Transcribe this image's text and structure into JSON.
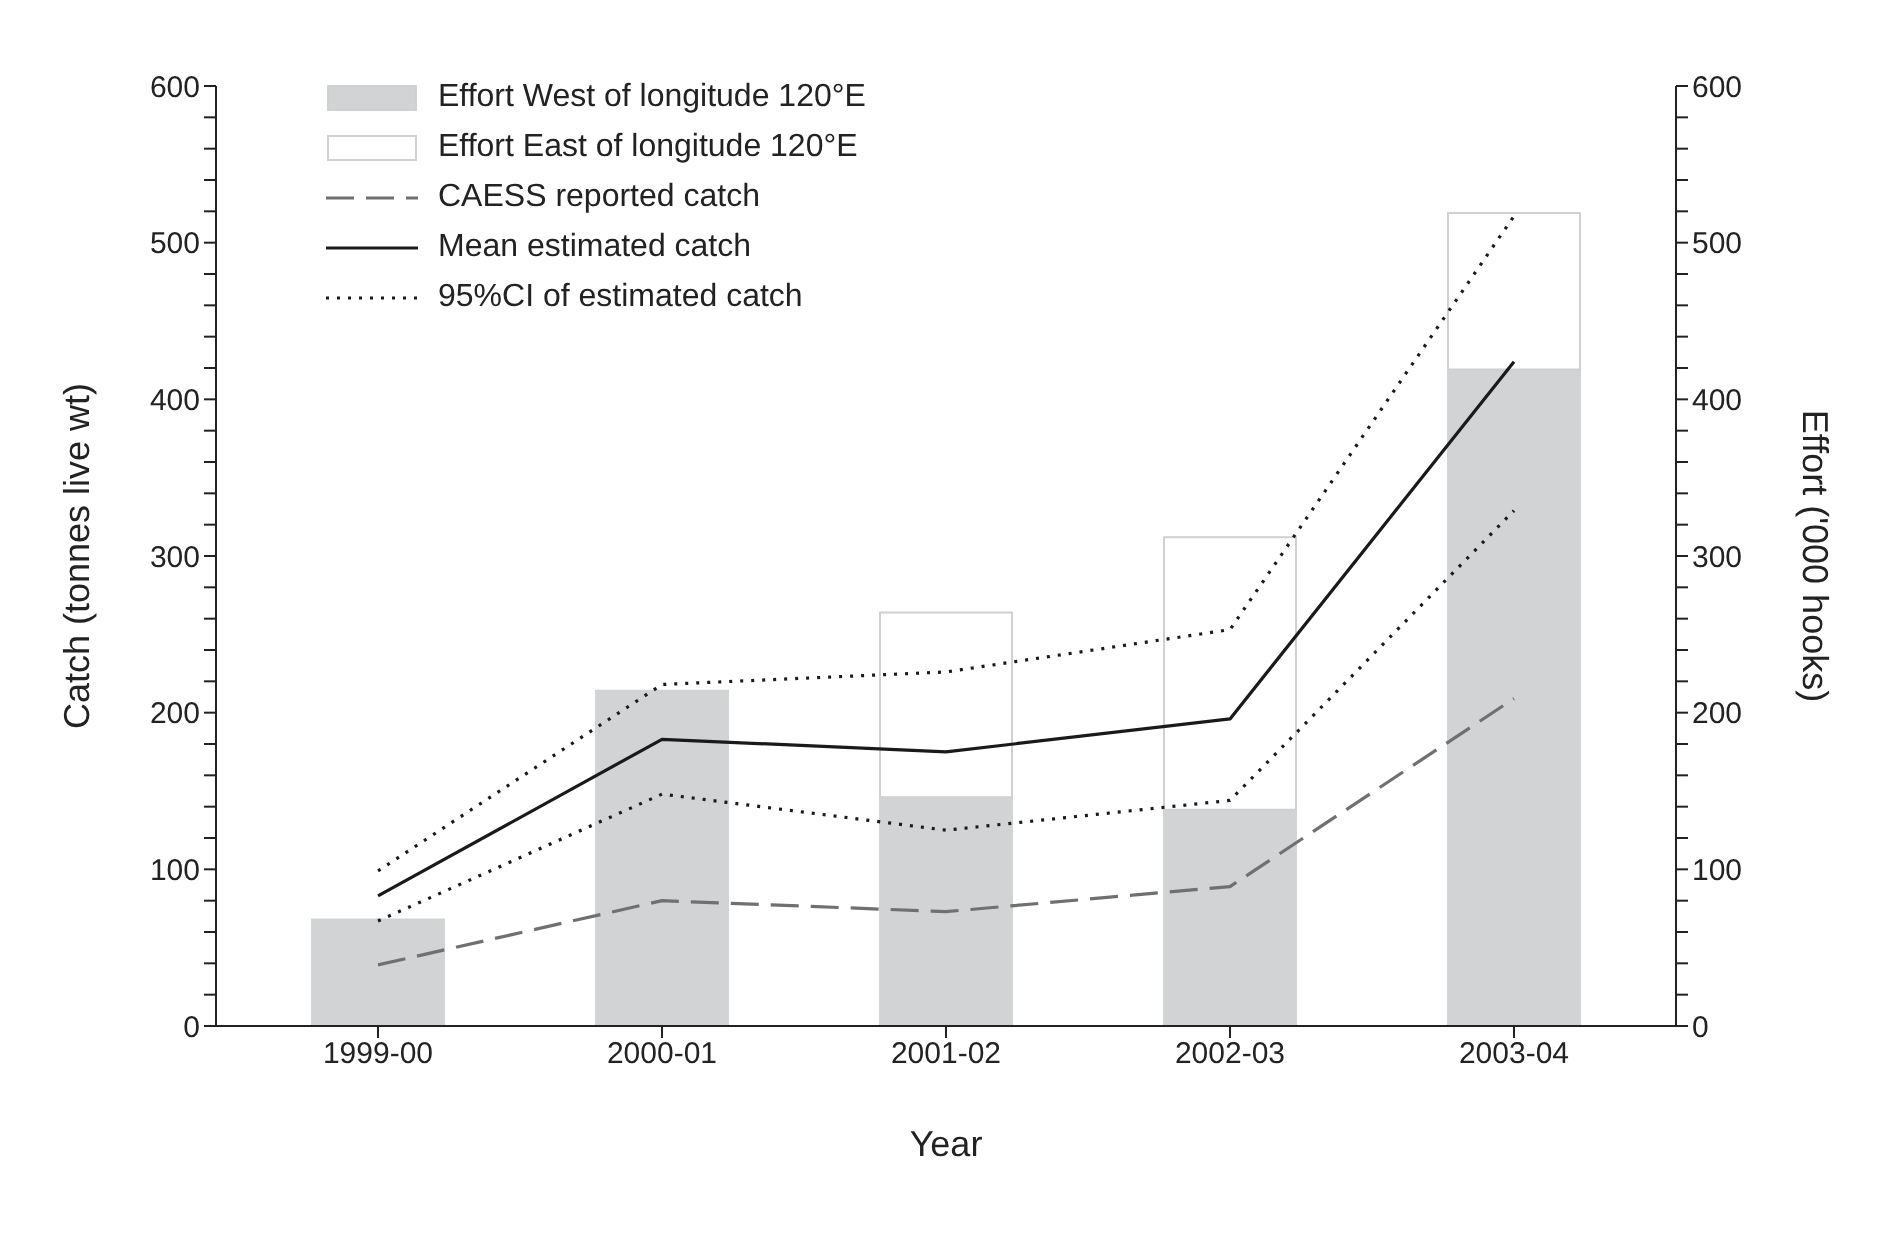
{
  "chart_data": {
    "type": "line",
    "xlabel": "Year",
    "ylabel": "Catch (tonnes live wt)",
    "y2label": "Effort ('000 hooks)",
    "categories": [
      "1999-00",
      "2000-01",
      "2001-02",
      "2002-03",
      "2003-04"
    ],
    "series": [
      {
        "name": "Effort West of longitude 120°E",
        "type": "bar",
        "axis": "y2",
        "color": "#d1d3d4",
        "values": [
          68,
          214,
          146,
          138,
          419
        ]
      },
      {
        "name": "Effort East of longitude 120°E",
        "type": "bar",
        "axis": "y2",
        "color": "#ffffff",
        "values": [
          null,
          null,
          118,
          174,
          100
        ]
      },
      {
        "name": "CAESS reported catch",
        "color": "#707070",
        "line_style": "dashed",
        "values": [
          39,
          80,
          73,
          89,
          209
        ]
      },
      {
        "name": "Mean estimated catch",
        "color": "#1a1a1a",
        "line_style": "solid",
        "values": [
          83,
          183,
          175,
          196,
          424
        ]
      },
      {
        "name": "95%CI of estimated catch",
        "color": "#1a1a1a",
        "line_style": "dotted",
        "values": [
          99,
          218,
          226,
          253,
          517
        ]
      },
      {
        "color": "#1a1a1a",
        "line_style": "dotted",
        "values": [
          67,
          148,
          125,
          144,
          329
        ]
      }
    ],
    "stacked": true,
    "marker": "none",
    "legend": "top left",
    "ylim": [
      0,
      600
    ],
    "yticks": [
      0,
      {
        "value": 20,
        "label": null
      },
      {
        "value": 40,
        "label": null
      },
      {
        "value": 60,
        "label": null
      },
      {
        "value": 80,
        "label": null
      },
      100,
      {
        "value": 120,
        "label": null
      },
      {
        "value": 140,
        "label": null
      },
      {
        "value": 160,
        "label": null
      },
      {
        "value": 180,
        "label": null
      },
      200,
      {
        "value": 220,
        "label": null
      },
      {
        "value": 240,
        "label": null
      },
      {
        "value": 260,
        "label": null
      },
      {
        "value": 280,
        "label": null
      },
      300,
      {
        "value": 320,
        "label": null
      },
      {
        "value": 340,
        "label": null
      },
      {
        "value": 360,
        "label": null
      },
      {
        "value": 380,
        "label": null
      },
      400,
      {
        "value": 420,
        "label": null
      },
      {
        "value": 440,
        "label": null
      },
      {
        "value": 460,
        "label": null
      },
      {
        "value": 480,
        "label": null
      },
      500,
      {
        "value": 520,
        "label": null
      },
      {
        "value": 540,
        "label": null
      },
      {
        "value": 560,
        "label": null
      },
      {
        "value": 580,
        "label": null
      },
      600
    ],
    "y2lim": [
      0,
      600
    ],
    "y2ticks": [
      0,
      {
        "value": 20,
        "label": null
      },
      {
        "value": 40,
        "label": null
      },
      {
        "value": 60,
        "label": null
      },
      {
        "value": 80,
        "label": null
      },
      100,
      {
        "value": 120,
        "label": null
      },
      {
        "value": 140,
        "label": null
      },
      {
        "value": 160,
        "label": null
      },
      {
        "value": 180,
        "label": null
      },
      200,
      {
        "value": 220,
        "label": null
      },
      {
        "value": 240,
        "label": null
      },
      {
        "value": 260,
        "label": null
      },
      {
        "value": 280,
        "label": null
      },
      300,
      {
        "value": 320,
        "label": null
      },
      {
        "value": 340,
        "label": null
      },
      {
        "value": 360,
        "label": null
      },
      {
        "value": 380,
        "label": null
      },
      400,
      {
        "value": 420,
        "label": null
      },
      {
        "value": 440,
        "label": null
      },
      {
        "value": 460,
        "label": null
      },
      {
        "value": 480,
        "label": null
      },
      500,
      {
        "value": 520,
        "label": null
      },
      {
        "value": 540,
        "label": null
      },
      {
        "value": 560,
        "label": null
      },
      {
        "value": 580,
        "label": null
      },
      600
    ]
  }
}
